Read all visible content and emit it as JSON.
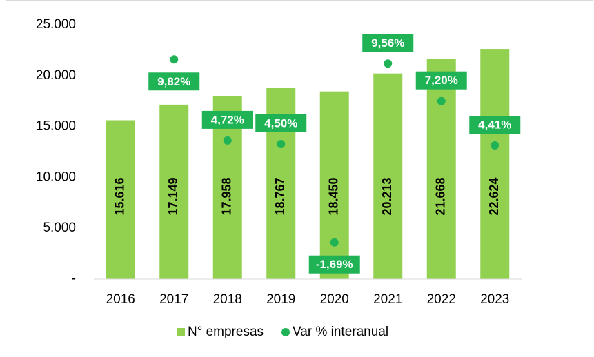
{
  "chart_data": {
    "type": "bar",
    "categories": [
      "2016",
      "2017",
      "2018",
      "2019",
      "2020",
      "2021",
      "2022",
      "2023"
    ],
    "series": [
      {
        "name": "N° empresas",
        "type": "bar",
        "color": "#92d050",
        "values": [
          15616,
          17149,
          17958,
          18767,
          18450,
          20213,
          21668,
          22624
        ],
        "value_labels": [
          "15.616",
          "17.149",
          "17.958",
          "18.767",
          "18.450",
          "20.213",
          "21.668",
          "22.624"
        ]
      },
      {
        "name": "Var % interanual",
        "type": "scatter",
        "axis": "y2",
        "color": "#1fb356",
        "values": [
          null,
          9.82,
          4.72,
          4.5,
          -1.69,
          9.56,
          7.2,
          4.41
        ],
        "value_labels": [
          null,
          "9,82%",
          "4,72%",
          "4,50%",
          "-1,69%",
          "9,56%",
          "7,20%",
          "4,41%"
        ]
      }
    ],
    "ylim": [
      0,
      25000
    ],
    "yticks": [
      {
        "value": 0,
        "label": "-"
      },
      {
        "value": 5000,
        "label": "5.000"
      },
      {
        "value": 10000,
        "label": "10.000"
      },
      {
        "value": 15000,
        "label": "15.000"
      },
      {
        "value": 20000,
        "label": "20.000"
      },
      {
        "value": 25000,
        "label": "25.000"
      }
    ],
    "y2lim": [
      -4,
      12
    ],
    "grid": false,
    "legend": "bottom"
  }
}
